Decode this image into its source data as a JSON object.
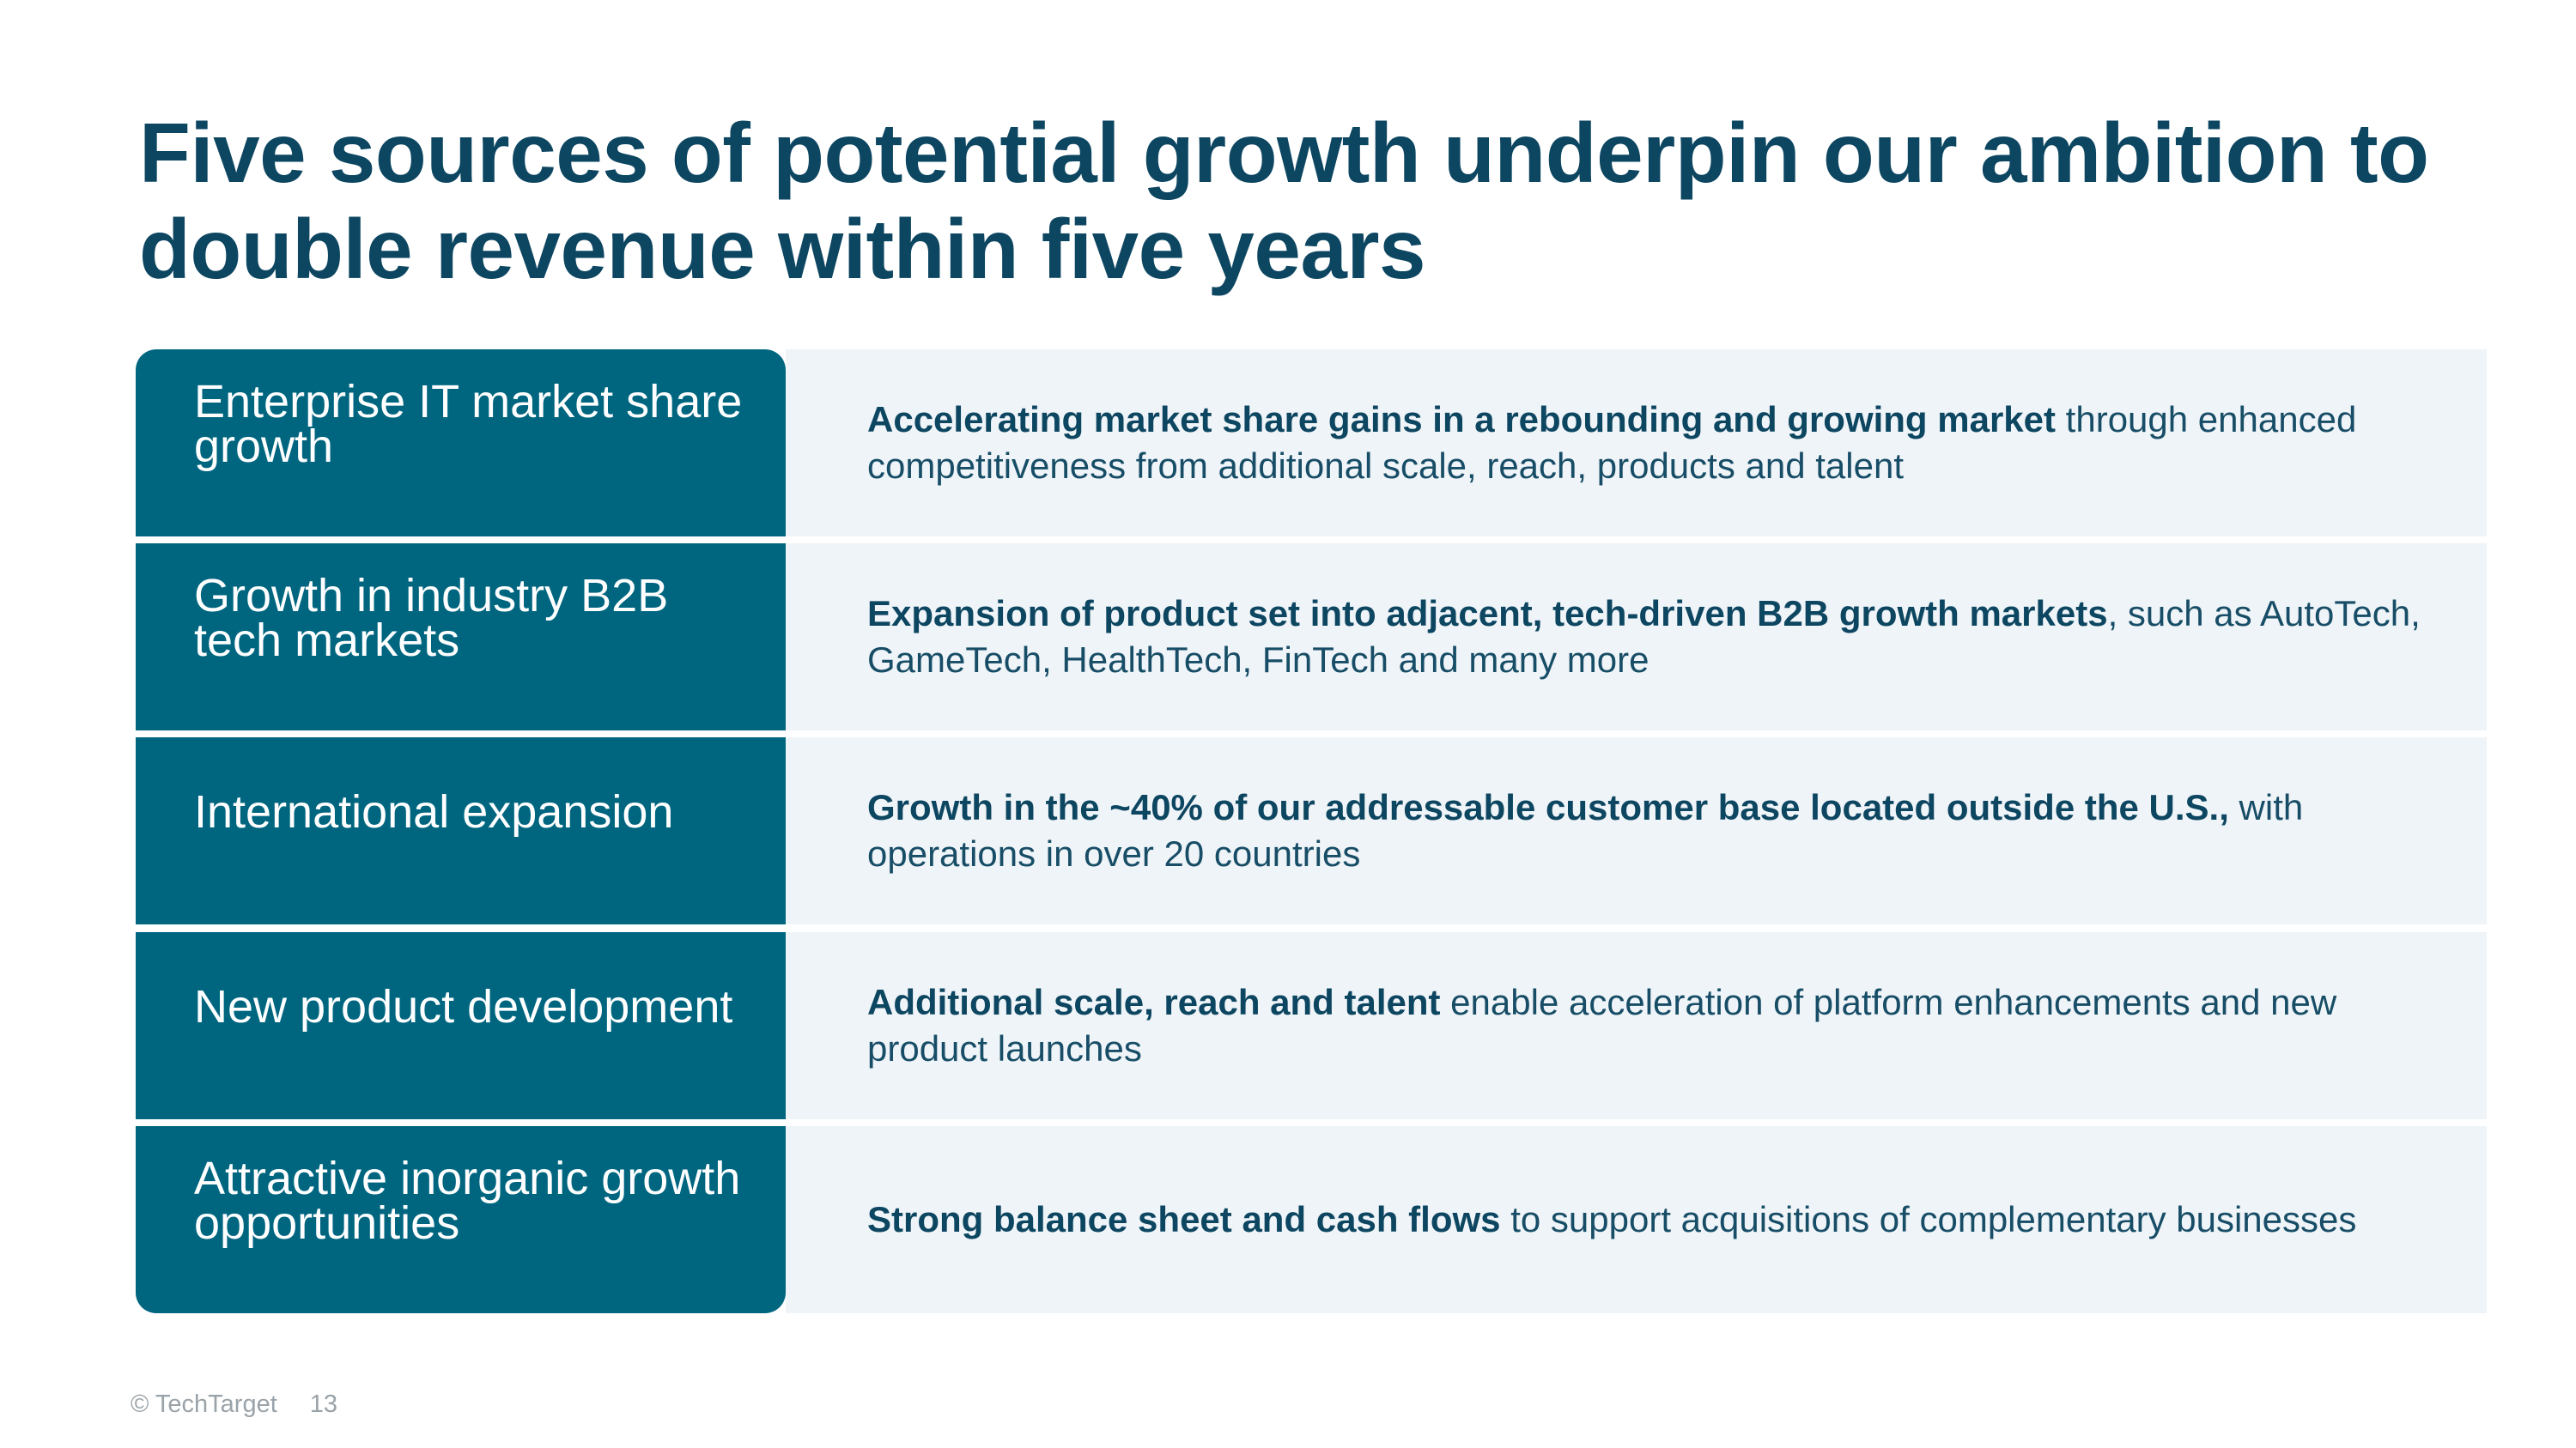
{
  "title": "Five sources of potential growth underpin our ambition to double revenue within five years",
  "rows": [
    {
      "label": "Enterprise IT market share growth",
      "bold": "Accelerating market share gains in a rebounding and growing market",
      "rest": " through enhanced competitiveness from additional scale, reach, products and talent"
    },
    {
      "label": "Growth in industry B2B tech markets",
      "bold": "Expansion of product set into adjacent, tech-driven B2B growth markets",
      "rest": ", such as AutoTech, GameTech, HealthTech, FinTech and many more"
    },
    {
      "label": "International expansion",
      "bold": "Growth in the ~40% of our addressable customer base located outside the U.S.,",
      "rest": " with operations in over 20 countries"
    },
    {
      "label": "New product development",
      "bold": "Additional scale, reach and talent",
      "rest": " enable acceleration of platform enhancements and new product launches"
    },
    {
      "label": "Attractive inorganic growth opportunities",
      "bold": "Strong balance sheet and cash flows",
      "rest": " to support acquisitions of complementary businesses"
    }
  ],
  "footer": {
    "copyright": "© TechTarget",
    "page_number": "13"
  },
  "colors": {
    "title": "#0d4661",
    "label_bg": "#006680",
    "desc_bg": "#eff4f8"
  }
}
